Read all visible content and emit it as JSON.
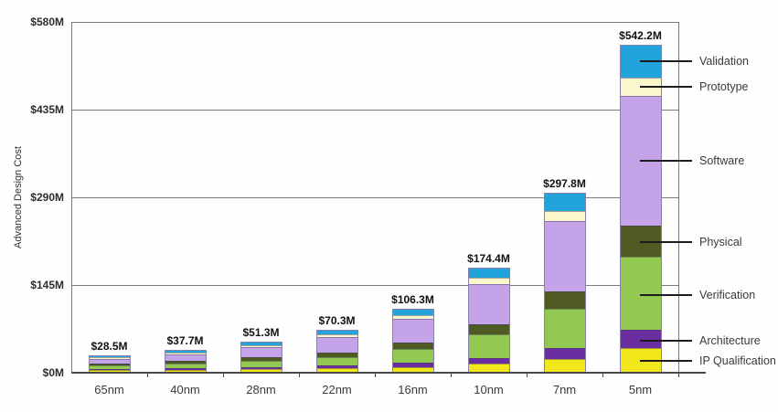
{
  "chart_data": {
    "type": "bar",
    "stacked": true,
    "title": "",
    "ylabel": "Advanced Design Cost",
    "xlabel": "",
    "ylim": [
      0,
      580
    ],
    "grid": true,
    "legend_position": "right",
    "yticks": {
      "values": [
        0,
        145,
        290,
        435,
        580
      ],
      "labels": [
        "$0M",
        "$145M",
        "$290M",
        "$435M",
        "$580M"
      ]
    },
    "categories": [
      "65nm",
      "40nm",
      "28nm",
      "22nm",
      "16nm",
      "10nm",
      "7nm",
      "5nm"
    ],
    "totals": {
      "values": [
        28.5,
        37.7,
        51.3,
        70.3,
        106.3,
        174.4,
        297.8,
        542.2
      ],
      "labels": [
        "$28.5M",
        "$37.7M",
        "$51.3M",
        "$70.3M",
        "$106.3M",
        "$174.4M",
        "$297.8M",
        "$542.2M"
      ]
    },
    "series": [
      {
        "name": "IP Qualification",
        "color": "#F2E71B",
        "values": [
          2.0,
          2.6,
          3.6,
          4.9,
          7.4,
          12.2,
          20.8,
          38.0
        ]
      },
      {
        "name": "Architecture",
        "color": "#6B2EA0",
        "values": [
          1.6,
          2.1,
          2.8,
          3.9,
          5.8,
          9.6,
          16.4,
          29.8
        ]
      },
      {
        "name": "Verification",
        "color": "#93C851",
        "values": [
          6.4,
          8.5,
          11.5,
          15.8,
          23.9,
          39.2,
          67.0,
          122.0
        ]
      },
      {
        "name": "Physical",
        "color": "#4F5B22",
        "values": [
          2.7,
          3.6,
          4.9,
          6.7,
          10.1,
          16.6,
          28.3,
          51.5
        ]
      },
      {
        "name": "Software",
        "color": "#C4A3E9",
        "values": [
          11.4,
          15.1,
          20.5,
          28.1,
          42.5,
          69.8,
          119.1,
          216.9
        ]
      },
      {
        "name": "Prototype",
        "color": "#FBF7CD",
        "values": [
          1.6,
          2.1,
          2.8,
          3.9,
          5.8,
          9.6,
          16.4,
          29.8
        ]
      },
      {
        "name": "Validation",
        "color": "#22A3DC",
        "values": [
          2.8,
          3.7,
          5.2,
          7.0,
          10.8,
          17.4,
          29.8,
          54.2
        ]
      }
    ],
    "legend_labels": [
      "Validation",
      "Prototype",
      "Software",
      "Physical",
      "Verification",
      "Architecture",
      "IP Qualification"
    ],
    "colors": {
      "bar_border": "#8781A9",
      "grid": "#7a7a7a",
      "axis": "#4a4a4a",
      "leader_line": "#1c1c1c",
      "text": "#2e2e2e"
    }
  }
}
